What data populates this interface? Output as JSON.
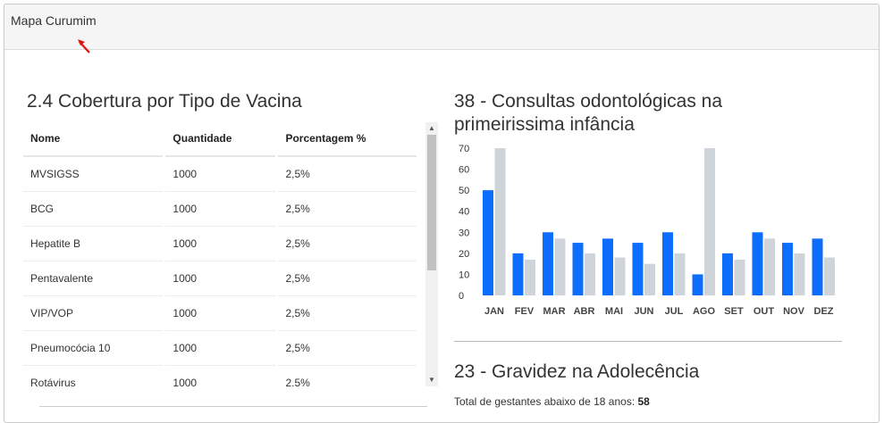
{
  "header": {
    "title": "Mapa Curumim"
  },
  "vaccine_section": {
    "title": "2.4 Cobertura por Tipo de Vacina",
    "columns": [
      "Nome",
      "Quantidade",
      "Porcentagem %"
    ],
    "rows": [
      [
        "MVSIGSS",
        "1000",
        "2,5%"
      ],
      [
        "BCG",
        "1000",
        "2,5%"
      ],
      [
        "Hepatite B",
        "1000",
        "2,5%"
      ],
      [
        "Pentavalente",
        "1000",
        "2,5%"
      ],
      [
        "VIP/VOP",
        "1000",
        "2,5%"
      ],
      [
        "Pneumocócia 10",
        "1000",
        "2,5%"
      ],
      [
        "Rotávirus",
        "1000",
        "2.5%"
      ]
    ]
  },
  "dental_section": {
    "title_line1": "38 - Consultas odontológicas na",
    "title_line2": "primeirissima infância"
  },
  "chart_data": {
    "type": "bar",
    "categories": [
      "JAN",
      "FEV",
      "MAR",
      "ABR",
      "MAI",
      "JUN",
      "JUL",
      "AGO",
      "SET",
      "OUT",
      "NOV",
      "DEZ"
    ],
    "series": [
      {
        "values": [
          50,
          20,
          30,
          25,
          27,
          25,
          30,
          10,
          20,
          30,
          25,
          27
        ],
        "color": "#0d6efd"
      },
      {
        "values": [
          70,
          17,
          27,
          20,
          18,
          15,
          20,
          70,
          17,
          27,
          20,
          18
        ],
        "color": "#cfd4da"
      }
    ],
    "ylim": [
      0,
      70
    ],
    "yticks": [
      "0",
      "10",
      "20",
      "30",
      "40",
      "50",
      "60",
      "70"
    ],
    "grid": false
  },
  "pregnancy_section": {
    "title": "23 - Gravidez na Adolecência",
    "total_label": "Total de gestantes abaixo de 18 anos:",
    "total_value": "58"
  }
}
